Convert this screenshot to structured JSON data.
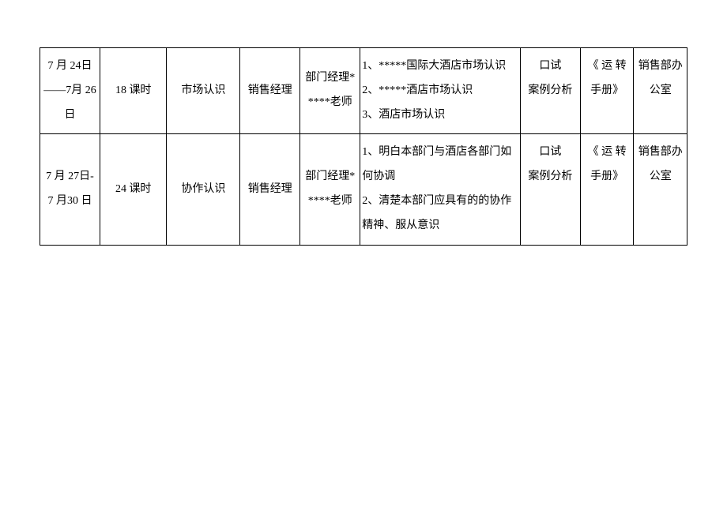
{
  "rows": [
    {
      "date": "7 月 24日——7月 26 日",
      "hours": "18 课时",
      "topic": "市场认识",
      "manager": "销售经理",
      "teacher": "部门经理*****老师",
      "content": "1、*****国际大酒店市场认识\n2、*****酒店市场认识\n3、酒店市场认识",
      "exam": "口试\n案例分析",
      "manual": "《 运 转手册》",
      "location": "销售部办公室"
    },
    {
      "date": "7 月 27日-7 月30 日",
      "hours": "24 课时",
      "topic": "协作认识",
      "manager": "销售经理",
      "teacher": "部门经理*****老师",
      "content": "1、明白本部门与酒店各部门如何协调\n2、清楚本部门应具有的的协作精神、服从意识",
      "exam": "口试\n案例分析",
      "manual": "《 运 转手册》",
      "location": "销售部办公室"
    }
  ],
  "style": {
    "font_family": "SimSun",
    "font_size_pt": 14,
    "border_color": "#000000",
    "background_color": "#ffffff",
    "text_color": "#000000"
  }
}
